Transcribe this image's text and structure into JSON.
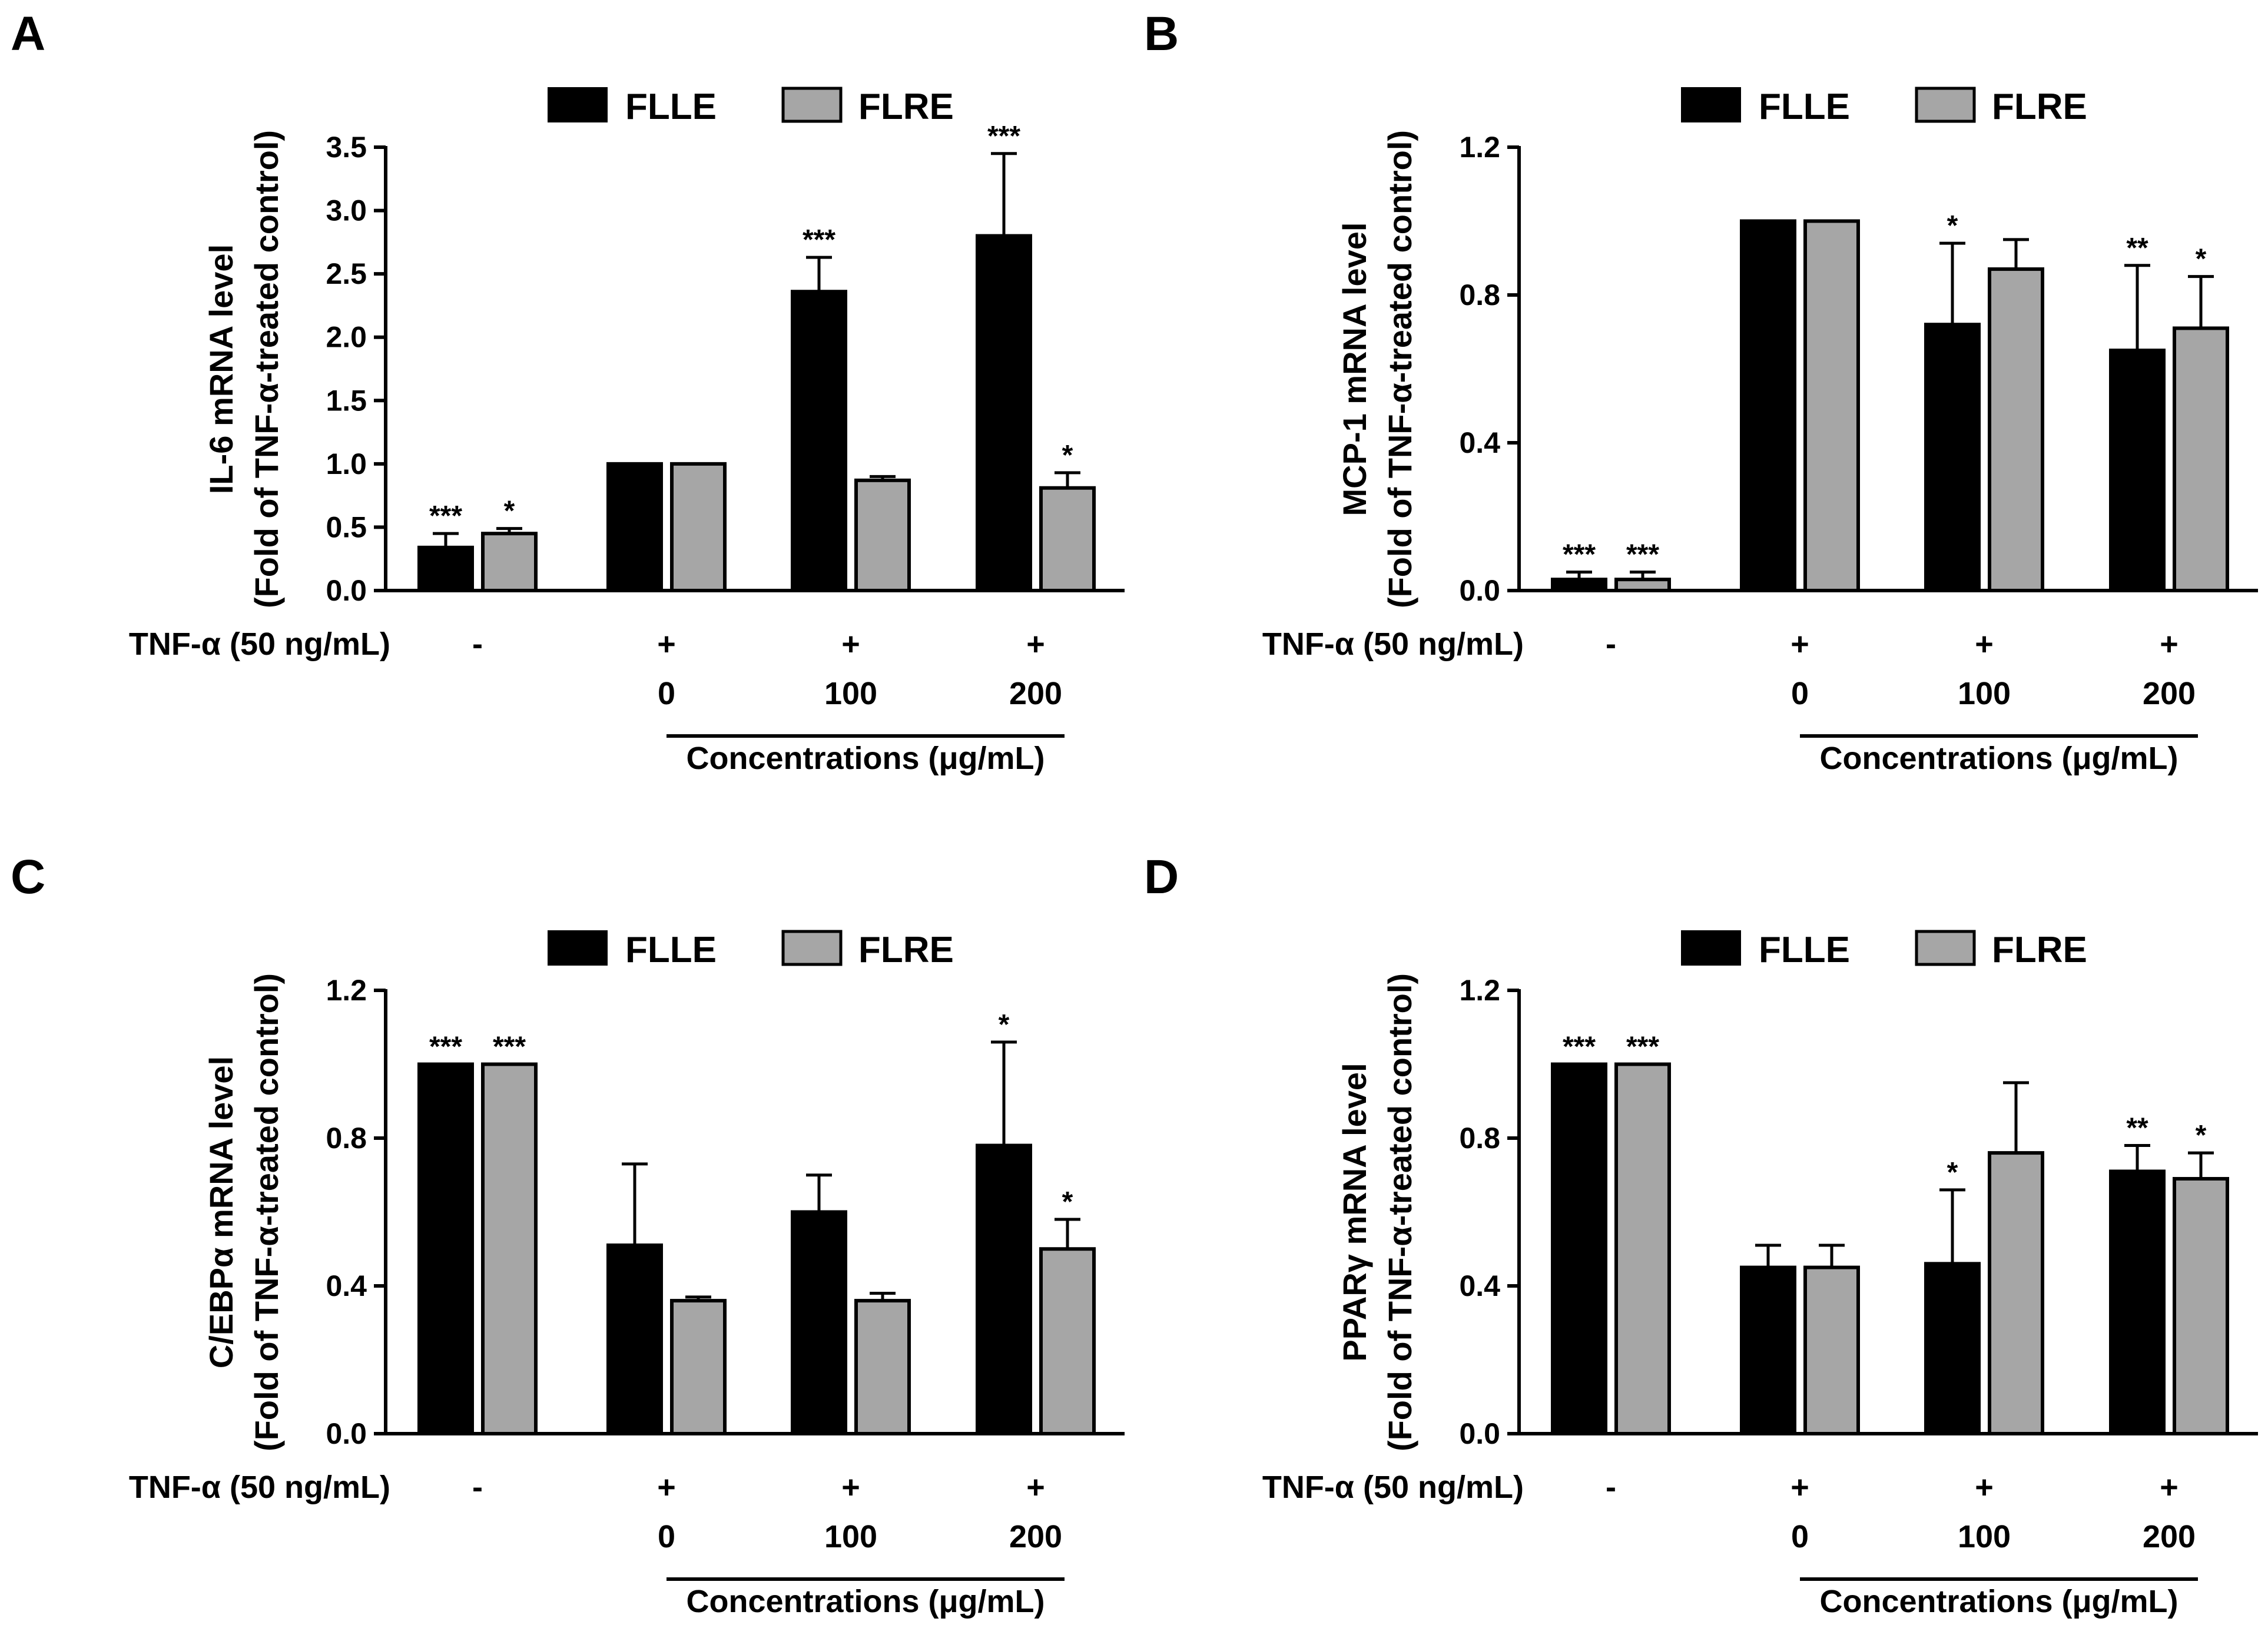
{
  "legend": {
    "series1": "FLLE",
    "series2": "FLRE"
  },
  "colors": {
    "FLLE": "#000000",
    "FLRE": "#a6a6a6",
    "axis": "#000000"
  },
  "xaxis": {
    "treatment_label": "TNF-α (50 ng/mL)",
    "treatment_marks": [
      "-",
      "+",
      "+",
      "+"
    ],
    "concentrations": [
      "0",
      "100",
      "200"
    ],
    "concentration_label": "Concentrations (μg/mL)"
  },
  "chart_data": [
    {
      "panel": "A",
      "type": "bar",
      "ylabel_line1": "IL-6 mRNA level",
      "ylabel_line2": "(Fold of TNF-α-treated control)",
      "ylim": [
        0,
        3.5
      ],
      "yticks": [
        "0.0",
        "0.5",
        "1.0",
        "1.5",
        "2.0",
        "2.5",
        "3.0",
        "3.5"
      ],
      "yticks_values": [
        0,
        0.5,
        1.0,
        1.5,
        2.0,
        2.5,
        3.0,
        3.5
      ],
      "categories": [
        "- (untreated)",
        "+ 0",
        "+ 100",
        "+ 200"
      ],
      "series": [
        {
          "name": "FLLE",
          "values": [
            0.34,
            1.0,
            2.36,
            2.8
          ],
          "errors": [
            0.11,
            0,
            0.27,
            0.65
          ],
          "sig": [
            "***",
            "",
            "***",
            "***"
          ]
        },
        {
          "name": "FLRE",
          "values": [
            0.45,
            1.0,
            0.87,
            0.81
          ],
          "errors": [
            0.04,
            0,
            0.03,
            0.12
          ],
          "sig": [
            "*",
            "",
            "",
            "*"
          ]
        }
      ]
    },
    {
      "panel": "B",
      "type": "bar",
      "ylabel_line1": "MCP-1 mRNA level",
      "ylabel_line2": "(Fold of TNF-α-treated control)",
      "ylim": [
        0,
        1.2
      ],
      "yticks": [
        "0.0",
        "0.4",
        "0.8",
        "1.2"
      ],
      "yticks_values": [
        0,
        0.4,
        0.8,
        1.2
      ],
      "categories": [
        "- (untreated)",
        "+ 0",
        "+ 100",
        "+ 200"
      ],
      "series": [
        {
          "name": "FLLE",
          "values": [
            0.03,
            1.0,
            0.72,
            0.65
          ],
          "errors": [
            0.02,
            0,
            0.22,
            0.23
          ],
          "sig": [
            "***",
            "",
            "*",
            "**"
          ]
        },
        {
          "name": "FLRE",
          "values": [
            0.03,
            1.0,
            0.87,
            0.71
          ],
          "errors": [
            0.02,
            0,
            0.08,
            0.14
          ],
          "sig": [
            "***",
            "",
            "",
            "*"
          ]
        }
      ]
    },
    {
      "panel": "C",
      "type": "bar",
      "ylabel_line1": "C/EBPα mRNA level",
      "ylabel_line2": "(Fold of TNF-α-treated control)",
      "ylim": [
        0,
        1.2
      ],
      "yticks": [
        "0.0",
        "0.4",
        "0.8",
        "1.2"
      ],
      "yticks_values": [
        0,
        0.4,
        0.8,
        1.2
      ],
      "categories": [
        "- (untreated)",
        "+ 0",
        "+ 100",
        "+ 200"
      ],
      "series": [
        {
          "name": "FLLE",
          "values": [
            1.0,
            0.51,
            0.6,
            0.78
          ],
          "errors": [
            0,
            0.22,
            0.1,
            0.28
          ],
          "sig": [
            "***",
            "",
            "",
            "*"
          ]
        },
        {
          "name": "FLRE",
          "values": [
            1.0,
            0.36,
            0.36,
            0.5
          ],
          "errors": [
            0,
            0.01,
            0.02,
            0.08
          ],
          "sig": [
            "***",
            "",
            "",
            "*"
          ]
        }
      ]
    },
    {
      "panel": "D",
      "type": "bar",
      "ylabel_line1": "PPARγ mRNA level",
      "ylabel_line2": "(Fold of TNF-α-treated control)",
      "ylim": [
        0,
        1.2
      ],
      "yticks": [
        "0.0",
        "0.4",
        "0.8",
        "1.2"
      ],
      "yticks_values": [
        0,
        0.4,
        0.8,
        1.2
      ],
      "categories": [
        "- (untreated)",
        "+ 0",
        "+ 100",
        "+ 200"
      ],
      "series": [
        {
          "name": "FLLE",
          "values": [
            1.0,
            0.45,
            0.46,
            0.71
          ],
          "errors": [
            0,
            0.06,
            0.2,
            0.07
          ],
          "sig": [
            "***",
            "",
            "*",
            "**"
          ]
        },
        {
          "name": "FLRE",
          "values": [
            1.0,
            0.45,
            0.76,
            0.69
          ],
          "errors": [
            0,
            0.06,
            0.19,
            0.07
          ],
          "sig": [
            "***",
            "",
            "",
            "*"
          ]
        }
      ]
    }
  ]
}
